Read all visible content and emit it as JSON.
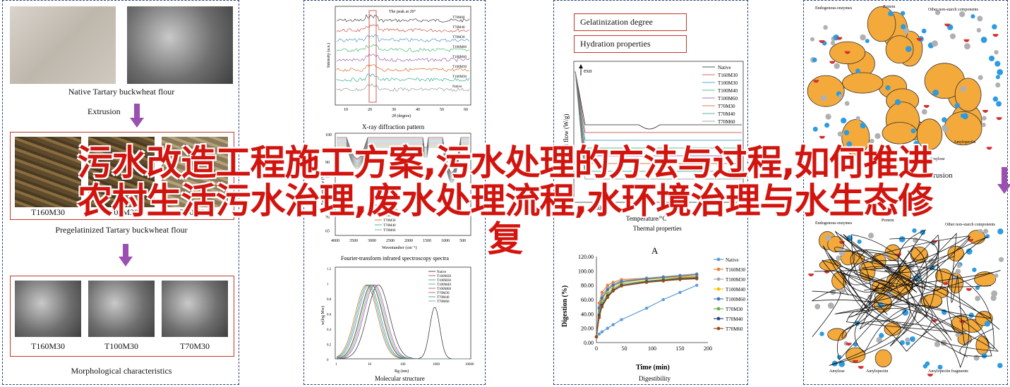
{
  "overlay_title": {
    "line1": "污水改造工程施工方案,污水处理的方法与过程,如何推进",
    "line2": "农村生活污水治理,废水处理流程,水环境治理与水生态修",
    "line3": "复"
  },
  "panel1": {
    "native_caption": "Native Tartary buckwheat flour",
    "extrusion_label": "Extrusion",
    "samples_top": [
      "T160M30",
      "T100M30",
      "T70M30"
    ],
    "pregel_caption": "Pregelatinized Tartary buckwheat flour",
    "samples_bottom": [
      "T160M30",
      "T100M30",
      "T70M30"
    ],
    "morph_caption": "Morphological characteristics"
  },
  "panel2": {
    "xrd": {
      "title_annot": "The peak at 20°",
      "ylabel": "Intensity (a.u.)",
      "xlabel": "2θ (degree)",
      "xticks": [
        "10",
        "20",
        "30",
        "40",
        "50",
        "60"
      ],
      "series": [
        "T70M60",
        "T70M40",
        "T70M30",
        "T100M60",
        "T100M40",
        "T100M30",
        "T160M30",
        "Native"
      ],
      "caption": "X-ray diffraction pattern"
    },
    "ftir": {
      "ylabel": "Transmittance (%)",
      "xlabel": "Wavenumber (cm⁻¹)",
      "yticks": [
        "100",
        "95",
        "90",
        "85",
        "80",
        "75",
        "70",
        "65"
      ],
      "xticks": [
        "4000",
        "3500",
        "3000",
        "2500",
        "2000",
        "1500",
        "1000",
        "500"
      ],
      "legend": [
        "Native",
        "T160M30",
        "T100M30",
        "T100M40",
        "T100M60",
        "T70M30",
        "T70M40",
        "T70M60"
      ],
      "caption": "Fourier-transform infrared spectroscopy spectra",
      "right_label": "pe"
    },
    "mol": {
      "ylabel": "w(log Mw)",
      "xlabel": "Rg (nm)",
      "yticks": [
        "1.2",
        "1",
        "0.8",
        "0.6",
        "0.4",
        "0.2",
        "0"
      ],
      "xticks": [
        "1",
        "10",
        "100",
        "1000",
        "10000"
      ],
      "legend": [
        "Native",
        "T160M30",
        "T100M30",
        "T100M40",
        "T100M60",
        "T70M30",
        "T70M40",
        "T70M60"
      ],
      "caption": "Molecular structure"
    }
  },
  "panel3": {
    "box1": "Gelatinization degree",
    "box2": "Hydration properties",
    "dsc": {
      "exo": "exo",
      "ylabel": "Heat flow (W/g)",
      "xlabel": "Temperature/°C",
      "legend": [
        "Native",
        "T160M30",
        "T100M30",
        "T100M40",
        "T100M60",
        "T70M30",
        "T70M40",
        "T70M60"
      ],
      "xtick_visible": "40",
      "caption": "Thermal properties"
    },
    "digest": {
      "panel_label": "A",
      "ylabel": "Digestion (%)",
      "xlabel": "Time (min)",
      "caption": "Digestibility"
    }
  },
  "panel4": {
    "top_labels": [
      "Endogenous enzymes",
      "Protein",
      "Other non-starch components",
      "Amylopectin",
      "Amylose"
    ],
    "mid_label": "Extrusion",
    "bottom_labels": [
      "Endogenous enzymes",
      "Protein",
      "Other non-starch components",
      "Amylose",
      "Amylopectin",
      "Amylopectin fragments"
    ]
  },
  "chart_data": [
    {
      "type": "line",
      "title": "Digestibility",
      "xlabel": "Time (min)",
      "ylabel": "Digestion (%)",
      "xlim": [
        0,
        200
      ],
      "ylim": [
        0,
        120
      ],
      "x_ticks": [
        0,
        50,
        100,
        150,
        200
      ],
      "y_ticks": [
        "0.00",
        "20.00",
        "40.00",
        "60.00",
        "80.00",
        "100.00",
        "120.00"
      ],
      "legend_position": "right",
      "x": [
        0,
        5,
        10,
        20,
        30,
        45,
        90,
        120,
        150,
        180
      ],
      "series": [
        {
          "name": "Native",
          "color": "#5b9bd5",
          "values": [
            8,
            12,
            15,
            20,
            25,
            32,
            48,
            60,
            70,
            80
          ]
        },
        {
          "name": "T160M30",
          "color": "#ed7d31",
          "values": [
            8,
            55,
            70,
            80,
            84,
            88,
            90,
            90,
            91,
            92
          ]
        },
        {
          "name": "T100M30",
          "color": "#a5a5a5",
          "values": [
            8,
            50,
            66,
            76,
            82,
            86,
            90,
            92,
            94,
            96
          ]
        },
        {
          "name": "T100M40",
          "color": "#ffc000",
          "values": [
            8,
            45,
            60,
            72,
            78,
            84,
            88,
            90,
            92,
            94
          ]
        },
        {
          "name": "T100M60",
          "color": "#4472c4",
          "values": [
            8,
            48,
            62,
            74,
            80,
            85,
            89,
            91,
            93,
            95
          ]
        },
        {
          "name": "T70M30",
          "color": "#70ad47",
          "values": [
            8,
            40,
            55,
            68,
            75,
            82,
            86,
            88,
            90,
            91
          ]
        },
        {
          "name": "T70M40",
          "color": "#264478",
          "values": [
            8,
            38,
            52,
            65,
            73,
            80,
            85,
            87,
            89,
            90
          ]
        },
        {
          "name": "T70M60",
          "color": "#9e480e",
          "values": [
            8,
            35,
            50,
            63,
            72,
            79,
            84,
            86,
            88,
            89
          ]
        }
      ]
    }
  ]
}
